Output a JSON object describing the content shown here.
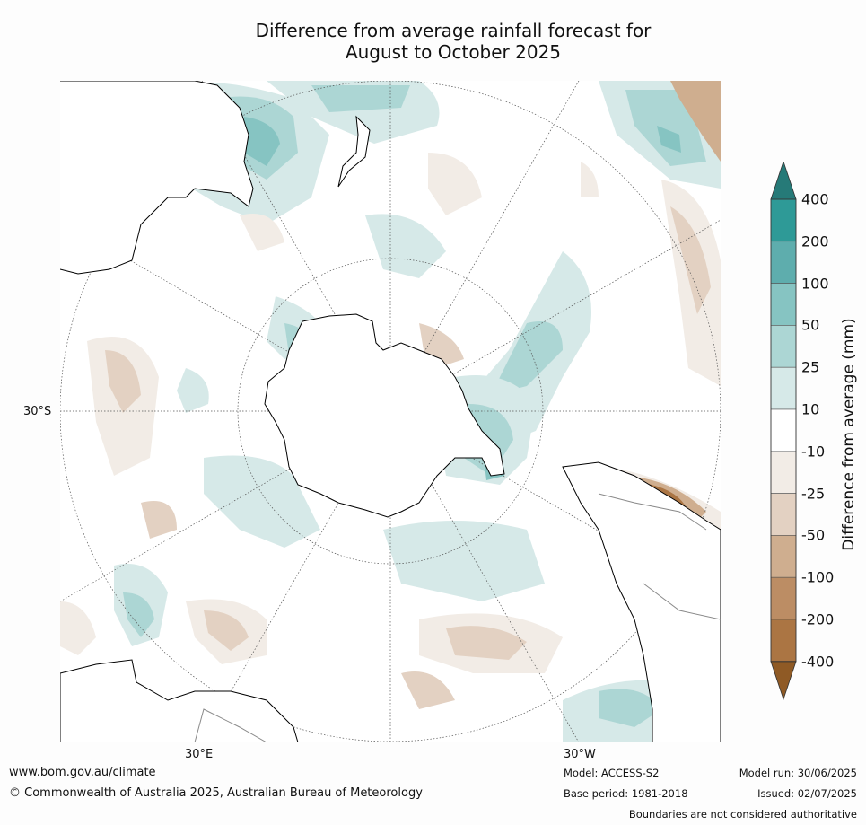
{
  "title": {
    "line1": "Difference from average rainfall forecast for",
    "line2": "August to October 2025"
  },
  "map": {
    "projection": "south-polar-stereographic",
    "labels": {
      "lat_left": "30°S",
      "lon_30e": "30°E",
      "lon_30w": "30°W"
    },
    "colors": {
      "ocean": "#ffffff",
      "coastline": "#000000",
      "state_borders": "#8a8a8a",
      "graticule": "#555555"
    }
  },
  "colorbar": {
    "title": "Difference from average (mm)",
    "tick_labels": [
      "400",
      "200",
      "100",
      "50",
      "25",
      "10",
      "-10",
      "-25",
      "-50",
      "-100",
      "-200",
      "-400"
    ],
    "bins": [
      {
        "range": ">400",
        "color": "#267a78"
      },
      {
        "range": "200 to 400",
        "color": "#2e9a97"
      },
      {
        "range": "100 to 200",
        "color": "#5eadad"
      },
      {
        "range": "50 to 100",
        "color": "#86c4c2"
      },
      {
        "range": "25 to 50",
        "color": "#acd6d4"
      },
      {
        "range": "10 to 25",
        "color": "#d6e9e8"
      },
      {
        "range": "-10 to 10",
        "color": "#ffffff"
      },
      {
        "range": "-25 to -10",
        "color": "#f2ece6"
      },
      {
        "range": "-50 to -25",
        "color": "#e3d1c2"
      },
      {
        "range": "-100 to -50",
        "color": "#cfae8f"
      },
      {
        "range": "-200 to -100",
        "color": "#bc8d64"
      },
      {
        "range": "-400 to -200",
        "color": "#ab7543"
      },
      {
        "range": "<-400",
        "color": "#8f5a25"
      }
    ]
  },
  "footer": {
    "website": "www.bom.gov.au/climate",
    "copyright": "© Commonwealth of Australia 2025, Australian Bureau of Meteorology",
    "model": "Model: ACCESS-S2",
    "base_period": "Base period: 1981-2018",
    "model_run": "Model run: 30/06/2025",
    "issued": "Issued: 02/07/2025",
    "disclaimer": "Boundaries are not considered authoritative"
  }
}
